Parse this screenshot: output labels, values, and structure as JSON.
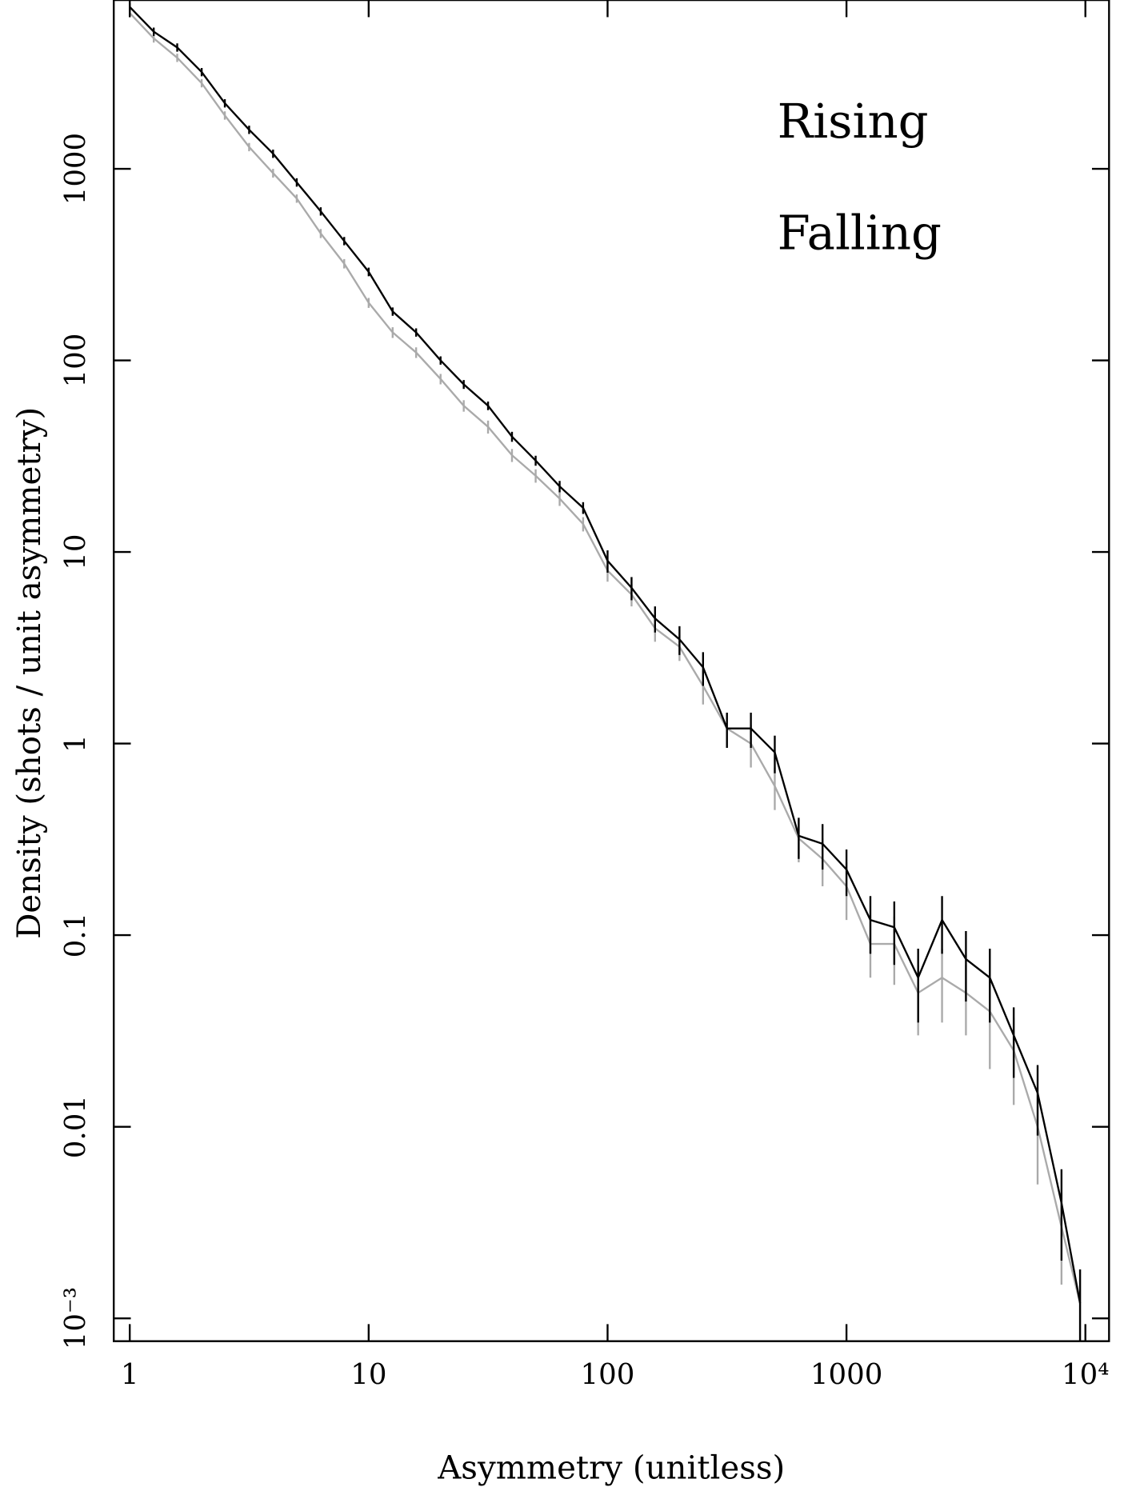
{
  "chart_data": {
    "type": "line",
    "xlabel": "Asymmetry (unitless)",
    "ylabel": "Density (shots / unit asymmetry)",
    "xscale": "log",
    "yscale": "log",
    "legend": "upper right",
    "xlim": [
      0.857,
      12560
    ],
    "ylim": [
      0.00076,
      7600
    ],
    "xticks": [
      1,
      10,
      100,
      1000,
      {
        "value": 10000,
        "label": "10⁴"
      }
    ],
    "yticks": [
      {
        "value": 0.001,
        "label": "10⁻³"
      },
      0.01,
      0.1,
      1,
      10,
      100,
      1000
    ],
    "x": [
      1,
      1.26,
      1.58,
      2.0,
      2.5,
      3.16,
      3.98,
      5.0,
      6.3,
      7.9,
      10,
      12.6,
      15.8,
      20,
      25,
      31.6,
      39.8,
      50,
      63,
      79,
      100,
      126,
      158,
      200,
      251,
      316,
      398,
      501,
      631,
      794,
      1000,
      1259,
      1585,
      1995,
      2512,
      3162,
      3981,
      5012,
      6310,
      7943,
      9500
    ],
    "series": [
      {
        "name": "Rising",
        "color": "#000000",
        "values": [
          7000,
          5200,
          4300,
          3200,
          2200,
          1600,
          1200,
          850,
          600,
          420,
          290,
          180,
          140,
          100,
          75,
          58,
          40,
          30,
          22,
          17,
          9.0,
          6.5,
          4.5,
          3.5,
          2.5,
          1.2,
          1.2,
          0.9,
          0.33,
          0.3,
          0.22,
          0.12,
          0.11,
          0.06,
          0.12,
          0.075,
          0.06,
          0.03,
          0.015,
          0.004,
          0.0012
        ],
        "errors": [
          350,
          260,
          215,
          160,
          110,
          80,
          60,
          43,
          30,
          21,
          15,
          9,
          7,
          5,
          4,
          3,
          2.4,
          1.8,
          1.5,
          1.2,
          1.2,
          0.9,
          0.7,
          0.6,
          0.5,
          0.25,
          0.25,
          0.2,
          0.08,
          0.08,
          0.06,
          0.04,
          0.04,
          0.025,
          0.04,
          0.03,
          0.025,
          0.012,
          0.006,
          0.002,
          0.0006
        ]
      },
      {
        "name": "Falling",
        "color": "#aaaaaa",
        "values": [
          6500,
          4800,
          3800,
          2800,
          1900,
          1300,
          950,
          700,
          460,
          320,
          200,
          140,
          110,
          80,
          58,
          45,
          32,
          25,
          19,
          14,
          8,
          6,
          4,
          3.2,
          2.0,
          1.2,
          1.0,
          0.6,
          0.32,
          0.25,
          0.18,
          0.09,
          0.09,
          0.05,
          0.06,
          0.05,
          0.04,
          0.025,
          0.01,
          0.003,
          0.0012
        ],
        "errors": [
          330,
          240,
          190,
          140,
          95,
          65,
          50,
          35,
          25,
          18,
          12,
          9,
          7,
          5,
          4,
          3.5,
          2.5,
          2,
          1.6,
          1.2,
          1.0,
          0.8,
          0.6,
          0.5,
          0.4,
          0.25,
          0.25,
          0.15,
          0.08,
          0.07,
          0.06,
          0.03,
          0.035,
          0.02,
          0.025,
          0.02,
          0.02,
          0.012,
          0.005,
          0.0015,
          0.0006
        ]
      }
    ]
  }
}
